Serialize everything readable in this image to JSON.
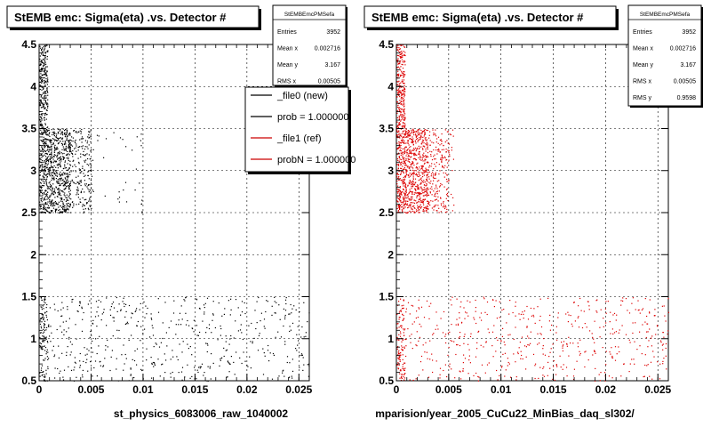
{
  "chart_data": [
    {
      "type": "scatter",
      "title": "StEMB emc: Sigma(eta) .vs. Detector #",
      "xlabel": "st_physics_6083006_raw_1040002",
      "ylabel": "",
      "xlim": [
        0,
        0.026
      ],
      "ylim": [
        0.5,
        4.5
      ],
      "xticks": [
        "0",
        "0.005",
        "0.01",
        "0.015",
        "0.02",
        "0.025"
      ],
      "yticks": [
        "0.5",
        "1",
        "1.5",
        "2",
        "2.5",
        "3",
        "3.5",
        "4",
        "4.5"
      ],
      "grid": true,
      "marker_color": "#000000",
      "stats": {
        "header": "StEMBEmcPMSefa",
        "rows": [
          {
            "label": "Entries",
            "value": "3952"
          },
          {
            "label": "Mean x",
            "value": "0.002716"
          },
          {
            "label": "Mean y",
            "value": "3.167"
          },
          {
            "label": "RMS x",
            "value": "0.00505"
          }
        ]
      },
      "legend": {
        "placement": "top-right",
        "entries": [
          {
            "label": "_file0 (new)",
            "color": "#000000"
          },
          {
            "label": "prob = 1.000000",
            "color": "#000000"
          },
          {
            "label": "_file1 (ref)",
            "color": "#cc0000"
          },
          {
            "label": "probN = 1.000000",
            "color": "#cc0000"
          }
        ]
      },
      "clusters": [
        {
          "x": [
            0.0,
            0.0008
          ],
          "y": [
            2.5,
            4.5
          ],
          "n": 520
        },
        {
          "x": [
            0.0008,
            0.003
          ],
          "y": [
            2.5,
            3.5
          ],
          "n": 620
        },
        {
          "x": [
            0.003,
            0.005
          ],
          "y": [
            2.5,
            3.5
          ],
          "n": 200
        },
        {
          "x": [
            0.005,
            0.01
          ],
          "y": [
            2.5,
            3.5
          ],
          "n": 35
        },
        {
          "x": [
            0.0,
            0.0008
          ],
          "y": [
            0.5,
            1.5
          ],
          "n": 120
        },
        {
          "x": [
            0.0008,
            0.026
          ],
          "y": [
            0.5,
            1.5
          ],
          "n": 520
        }
      ]
    },
    {
      "type": "scatter",
      "title": "StEMB emc: Sigma(eta) .vs. Detector #",
      "xlabel": "mparision/year_2005_CuCu22_MinBias_daq_sl302/",
      "ylabel": "",
      "xlim": [
        0,
        0.026
      ],
      "ylim": [
        0.5,
        4.5
      ],
      "xticks": [
        "0",
        "0.005",
        "0.01",
        "0.015",
        "0.02",
        "0.025"
      ],
      "yticks": [
        "0.5",
        "1",
        "1.5",
        "2",
        "2.5",
        "3",
        "3.5",
        "4",
        "4.5"
      ],
      "grid": true,
      "marker_color": "#dd0000",
      "stats": {
        "header": "StEMBEmcPMSefa",
        "rows": [
          {
            "label": "Entries",
            "value": "3952"
          },
          {
            "label": "Mean x",
            "value": "0.002716"
          },
          {
            "label": "Mean y",
            "value": "3.167"
          },
          {
            "label": "RMS x",
            "value": "0.00505"
          },
          {
            "label": "RMS y",
            "value": "0.9598"
          }
        ]
      },
      "clusters": [
        {
          "x": [
            0.0,
            0.0008
          ],
          "y": [
            2.5,
            4.5
          ],
          "n": 520
        },
        {
          "x": [
            0.0008,
            0.003
          ],
          "y": [
            2.5,
            3.5
          ],
          "n": 620
        },
        {
          "x": [
            0.003,
            0.005
          ],
          "y": [
            2.5,
            3.5
          ],
          "n": 200
        },
        {
          "x": [
            0.005,
            0.0055
          ],
          "y": [
            2.5,
            3.5
          ],
          "n": 15
        },
        {
          "x": [
            0.0,
            0.0008
          ],
          "y": [
            0.5,
            1.5
          ],
          "n": 120
        },
        {
          "x": [
            0.0008,
            0.026
          ],
          "y": [
            0.5,
            1.5
          ],
          "n": 520
        }
      ]
    }
  ]
}
